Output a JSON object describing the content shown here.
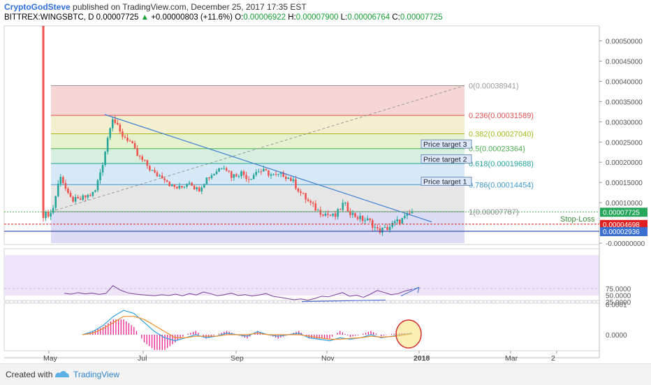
{
  "header": {
    "author": "CryptoGodSteve",
    "published": " published on TradingView.com, December 25, 2017 17:35 EST",
    "symbol": "BITTREX:WINGSBTC, D",
    "price": "0.00007725",
    "change_arrow": "▲",
    "change": "+0.00000803 (+11.6%)",
    "o_label": "O:",
    "o": "0.00006922",
    "h_label": "H:",
    "h": "0.00007900",
    "l_label": "L:",
    "l": "0.00006764",
    "c_label": "C:",
    "c": "0.00007725"
  },
  "footer": {
    "created_with": "Created with",
    "brand": "TradingView"
  },
  "colors": {
    "up": "#26a69a",
    "down": "#ef5350",
    "trend": "#3d7fd0",
    "rsi": "#7b3f9e",
    "macd": "#2f9fe0",
    "signal": "#f28c28",
    "hist": "#e91e8c",
    "stop": "#e02020"
  },
  "chart_data": {
    "type": "candlestick",
    "symbol": "BITTREX:WINGSBTC",
    "interval": "D",
    "x_axis_labels": [
      "May",
      "Jul",
      "Sep",
      "Nov",
      "2018",
      "Mar",
      "2"
    ],
    "price_ticks": [
      "0.00050000",
      "0.00045000",
      "0.00040000",
      "0.00035000",
      "0.00030000",
      "0.00025000",
      "0.00020000",
      "0.00015000",
      "0.00010000",
      "0.00005000",
      "-0.00000000"
    ],
    "close_path": [
      7e-05,
      7.45e-05,
      0.00017,
      0.00011,
      0.000105,
      0.000115,
      0.000125,
      0.000205,
      0.000315,
      0.00027,
      0.000255,
      0.000215,
      0.000195,
      0.00017,
      0.000165,
      0.00014,
      0.000135,
      0.000155,
      0.00013,
      0.00016,
      0.000175,
      0.000195,
      0.000165,
      0.000175,
      0.00016,
      0.00018,
      0.000175,
      0.000165,
      0.00017,
      0.000155,
      0.000125,
      0.0001,
      8e-05,
      7.2e-05,
      6.5e-05,
      9.8e-05,
      7.2e-05,
      6e-05,
      5.5e-05,
      3.05e-05,
      3.55e-05,
      5e-05,
      6e-05,
      7.725e-05
    ],
    "fibonacci": [
      {
        "ratio": "0",
        "value": "0.00038941",
        "color": "#9a9a9a"
      },
      {
        "ratio": "0.236",
        "value": "0.00031589",
        "color": "#e05050"
      },
      {
        "ratio": "0.382",
        "value": "0.00027040",
        "color": "#a8b820"
      },
      {
        "ratio": "0.5",
        "value": "0.00023364",
        "color": "#4caf50"
      },
      {
        "ratio": "0.618",
        "value": "0.00019688",
        "color": "#26a69a"
      },
      {
        "ratio": "0.786",
        "value": "0.00014454",
        "color": "#3d9ad0"
      },
      {
        "ratio": "1",
        "value": "0.00007787",
        "color": "#8a8a8a"
      }
    ],
    "fib_zones": [
      {
        "from": 0.00038941,
        "to": 0.00031589,
        "color": "#f6d5d5"
      },
      {
        "from": 0.00031589,
        "to": 0.0002704,
        "color": "#f3efcf"
      },
      {
        "from": 0.0002704,
        "to": 0.00023364,
        "color": "#e6f2cf"
      },
      {
        "from": 0.00023364,
        "to": 0.00019688,
        "color": "#d6efdf"
      },
      {
        "from": 0.00019688,
        "to": 0.00014454,
        "color": "#d7e9f6"
      },
      {
        "from": 0.00014454,
        "to": 7.787e-05,
        "color": "#e6e6e6"
      },
      {
        "from": 7.787e-05,
        "to": 0.0,
        "color": "#dcdcf6"
      }
    ],
    "price_targets": [
      {
        "label": "Price target 3",
        "value": 0.000245
      },
      {
        "label": "Price target 2",
        "value": 0.000208
      },
      {
        "label": "Price target 1",
        "value": 0.000153
      }
    ],
    "stop_loss": {
      "label": "Stop-Loss",
      "value": 4.698e-05,
      "tag": "0.00004698"
    },
    "current_price_tag": "0.00007725",
    "support_tag": {
      "value": 2.936e-05,
      "label": "0.00002936"
    },
    "rsi": {
      "ticks": [
        "75.0000",
        "50.0000",
        "25.0000"
      ],
      "series": [
        57,
        54,
        60,
        55,
        58,
        53,
        57,
        86,
        70,
        60,
        55,
        52,
        50,
        48,
        52,
        49,
        54,
        48,
        56,
        51,
        62,
        56,
        48,
        52,
        58,
        49,
        52,
        47,
        51,
        56,
        46,
        42,
        38,
        33,
        36,
        31,
        38,
        46,
        44,
        52,
        60,
        46,
        50,
        42,
        54,
        68,
        60,
        52,
        56,
        66,
        72
      ]
    },
    "macd": {
      "ticks": [
        "0.0001",
        "0.0000"
      ],
      "macd": [
        0,
        1e-05,
        3e-05,
        6e-05,
        8e-05,
        7e-05,
        4e-05,
        1e-05,
        -1e-05,
        -2e-05,
        -1e-05,
        0,
        -1e-05,
        -5e-06,
        5e-06,
        0,
        -5e-06,
        1e-05,
        0,
        -5e-06,
        0,
        5e-06,
        -1e-05,
        -1.5e-05,
        -2e-05,
        -1e-05,
        -1.5e-05,
        -1e-05,
        0,
        -1e-05,
        -5e-06,
        0,
        5e-06
      ],
      "signal": [
        0,
        5e-06,
        2e-05,
        4e-05,
        6e-05,
        6e-05,
        5e-05,
        3e-05,
        1e-05,
        -1e-05,
        -1e-05,
        -5e-06,
        -5e-06,
        -5e-06,
        0,
        0,
        0,
        5e-06,
        0,
        0,
        0,
        0,
        -5e-06,
        -1e-05,
        -1.5e-05,
        -1.5e-05,
        -1.2e-05,
        -1e-05,
        -5e-06,
        -8e-06,
        -6e-06,
        -2e-06,
        3e-06
      ]
    }
  }
}
